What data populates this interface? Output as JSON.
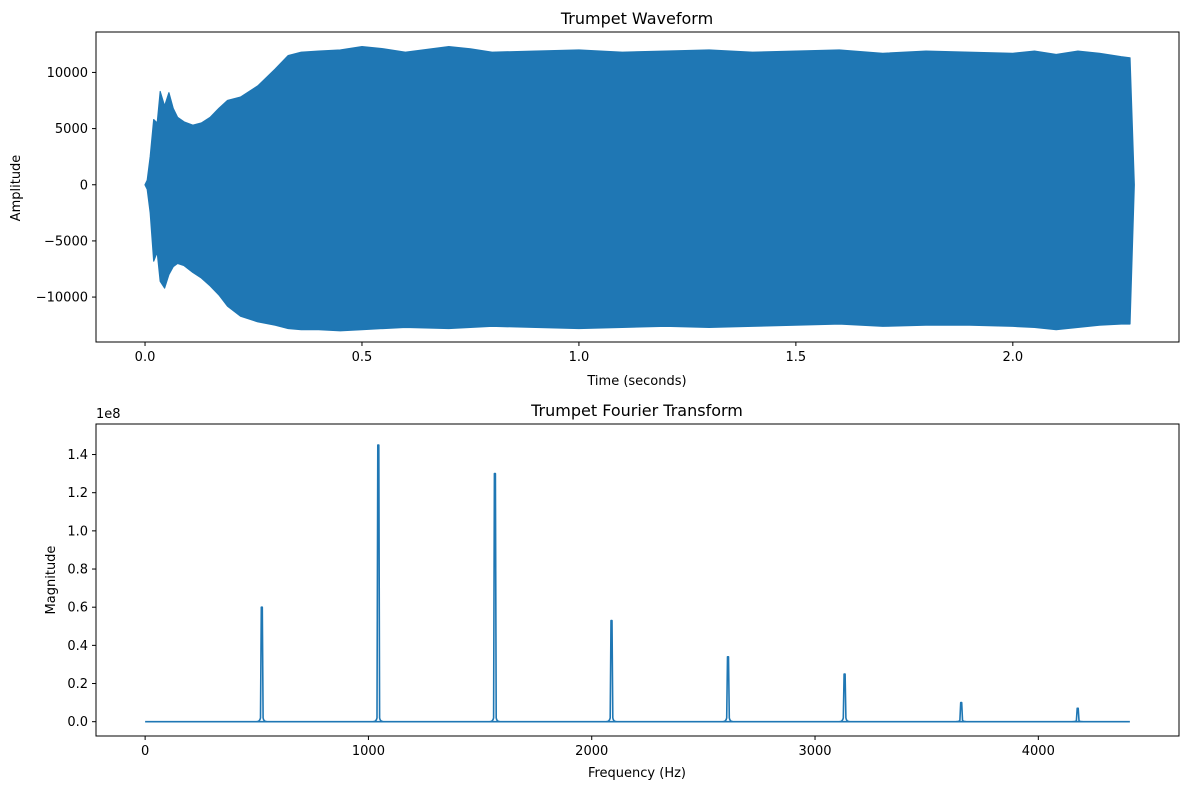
{
  "chart_data": [
    {
      "type": "line",
      "title": "Trumpet Waveform",
      "xlabel": "Time (seconds)",
      "ylabel": "Amplitude",
      "xlim": [
        -0.113,
        2.383
      ],
      "ylim": [
        -14000,
        13600
      ],
      "xticks": [
        0.0,
        0.5,
        1.0,
        1.5,
        2.0
      ],
      "xtick_labels": [
        "0.0",
        "0.5",
        "1.0",
        "1.5",
        "2.0"
      ],
      "yticks": [
        -10000,
        -5000,
        0,
        5000,
        10000
      ],
      "ytick_labels": [
        "−10000",
        "−5000",
        "0",
        "5000",
        "10000"
      ],
      "grid": false,
      "color": "#1f77b4",
      "series": [
        {
          "envelope_time": [
            0.0,
            0.005,
            0.012,
            0.02,
            0.028,
            0.035,
            0.045,
            0.055,
            0.065,
            0.075,
            0.09,
            0.11,
            0.13,
            0.15,
            0.17,
            0.19,
            0.22,
            0.26,
            0.3,
            0.33,
            0.36,
            0.4,
            0.45,
            0.5,
            0.55,
            0.6,
            0.7,
            0.75,
            0.8,
            0.9,
            1.0,
            1.1,
            1.2,
            1.3,
            1.4,
            1.5,
            1.6,
            1.7,
            1.8,
            1.9,
            2.0,
            2.05,
            2.1,
            2.15,
            2.2,
            2.25,
            2.27,
            2.28
          ],
          "envelope_upper": [
            0,
            400,
            2500,
            5800,
            5500,
            8300,
            7000,
            8200,
            6800,
            6000,
            5600,
            5300,
            5500,
            6000,
            6800,
            7500,
            7800,
            8800,
            10300,
            11500,
            11800,
            11900,
            12000,
            12300,
            12100,
            11800,
            12300,
            12100,
            11800,
            11900,
            12000,
            11800,
            11900,
            12000,
            11800,
            11900,
            12000,
            11700,
            11900,
            11800,
            11700,
            11900,
            11600,
            11900,
            11700,
            11400,
            11300,
            0
          ],
          "envelope_lower": [
            0,
            -400,
            -2500,
            -6800,
            -6000,
            -8600,
            -9200,
            -8000,
            -7300,
            -7000,
            -7200,
            -7800,
            -8300,
            -9000,
            -9800,
            -10800,
            -11700,
            -12200,
            -12500,
            -12800,
            -12900,
            -12900,
            -13000,
            -12900,
            -12800,
            -12700,
            -12800,
            -12700,
            -12600,
            -12700,
            -12800,
            -12700,
            -12600,
            -12700,
            -12600,
            -12500,
            -12400,
            -12600,
            -12500,
            -12500,
            -12600,
            -12700,
            -12900,
            -12700,
            -12500,
            -12400,
            -12400,
            0
          ]
        }
      ]
    },
    {
      "type": "line",
      "title": "Trumpet Fourier Transform",
      "xlabel": "Frequency (Hz)",
      "ylabel": "Magnitude",
      "offset_label": "1e8",
      "xlim": [
        -220,
        4630
      ],
      "ylim": [
        -0.075,
        1.56
      ],
      "xticks": [
        0,
        1000,
        2000,
        3000,
        4000
      ],
      "xtick_labels": [
        "0",
        "1000",
        "2000",
        "3000",
        "4000"
      ],
      "yticks": [
        0.0,
        0.2,
        0.4,
        0.6,
        0.8,
        1.0,
        1.2,
        1.4
      ],
      "ytick_labels": [
        "0.0",
        "0.2",
        "0.4",
        "0.6",
        "0.8",
        "1.0",
        "1.2",
        "1.4"
      ],
      "grid": false,
      "color": "#1f77b4",
      "x_range": [
        0,
        4410
      ],
      "peaks": [
        {
          "freq": 522,
          "magnitude": 0.6
        },
        {
          "freq": 1044,
          "magnitude": 1.45
        },
        {
          "freq": 1566,
          "magnitude": 1.3
        },
        {
          "freq": 2088,
          "magnitude": 0.53
        },
        {
          "freq": 2610,
          "magnitude": 0.34
        },
        {
          "freq": 3132,
          "magnitude": 0.25
        },
        {
          "freq": 3654,
          "magnitude": 0.1
        },
        {
          "freq": 4176,
          "magnitude": 0.07
        }
      ]
    }
  ]
}
